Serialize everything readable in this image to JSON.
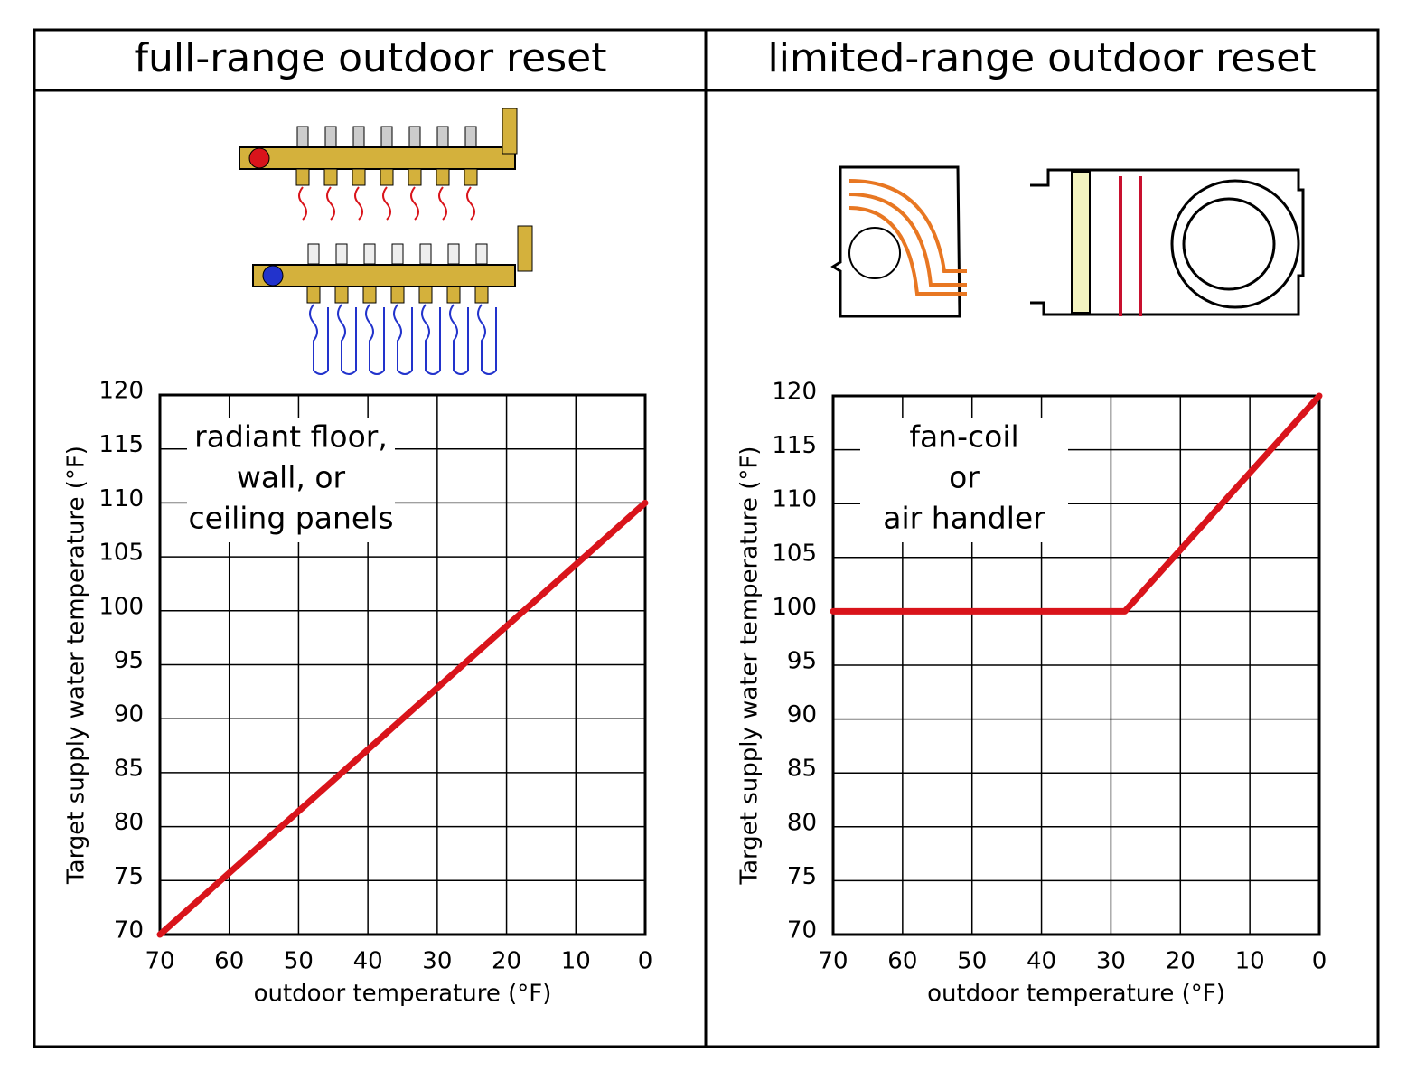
{
  "chart_data": [
    {
      "type": "line",
      "title": "full-range outdoor reset",
      "annotation": [
        "radiant floor,",
        "wall, or",
        "ceiling panels"
      ],
      "xlabel": "outdoor temperature (°F)",
      "ylabel": "Target supply water temperature (°F)",
      "x": [
        70,
        0
      ],
      "series": [
        {
          "color": "#d9141b",
          "values": [
            70,
            110
          ]
        }
      ],
      "xlim": [
        70,
        0
      ],
      "ylim": [
        70,
        120
      ],
      "xticks": [
        70,
        60,
        50,
        40,
        30,
        20,
        10,
        0
      ],
      "yticks": [
        70,
        75,
        80,
        85,
        90,
        95,
        100,
        105,
        110,
        115,
        120
      ],
      "grid": true
    },
    {
      "type": "line",
      "title": "limited-range outdoor reset",
      "annotation": [
        "fan-coil",
        "or",
        "air handler"
      ],
      "xlabel": "outdoor temperature (°F)",
      "ylabel": "Target supply water temperature (°F)",
      "x": [
        70,
        28,
        0
      ],
      "series": [
        {
          "color": "#d9141b",
          "values": [
            100,
            100,
            120
          ]
        }
      ],
      "xlim": [
        70,
        0
      ],
      "ylim": [
        70,
        120
      ],
      "xticks": [
        70,
        60,
        50,
        40,
        30,
        20,
        10,
        0
      ],
      "yticks": [
        70,
        75,
        80,
        85,
        90,
        95,
        100,
        105,
        110,
        115,
        120
      ],
      "grid": true
    }
  ]
}
